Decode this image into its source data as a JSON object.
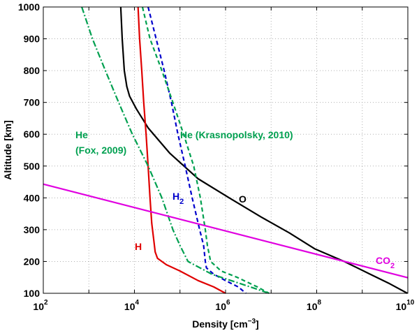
{
  "chart_data": {
    "type": "line",
    "title": "",
    "xlabel": "Density [cm",
    "xlabel_sup": "−3",
    "xlabel_end": "]",
    "ylabel": "Altitude [km]",
    "xscale": "log",
    "xlim": [
      100,
      10000000000
    ],
    "ylim": [
      100,
      1000
    ],
    "grid": true,
    "x_ticks": [
      {
        "value": 100,
        "base": "10",
        "exp": "2"
      },
      {
        "value": 10000,
        "base": "10",
        "exp": "4"
      },
      {
        "value": 1000000,
        "base": "10",
        "exp": "6"
      },
      {
        "value": 100000000,
        "base": "10",
        "exp": "8"
      },
      {
        "value": 10000000000,
        "base": "10",
        "exp": "10"
      }
    ],
    "y_ticks": [
      100,
      200,
      300,
      400,
      500,
      600,
      700,
      800,
      900,
      1000
    ],
    "series": [
      {
        "name": "O",
        "color": "#000000",
        "dash": "solid",
        "points": [
          [
            5000,
            1000
          ],
          [
            5400,
            900
          ],
          [
            6000,
            800
          ],
          [
            6800,
            750
          ],
          [
            7800,
            720
          ],
          [
            11000,
            680
          ],
          [
            20000,
            620
          ],
          [
            60000,
            540
          ],
          [
            250000,
            460
          ],
          [
            1200000,
            400
          ],
          [
            6000000,
            340
          ],
          [
            25000000,
            290
          ],
          [
            90000000,
            240
          ],
          [
            400000000,
            200
          ],
          [
            1500000000,
            160
          ],
          [
            4000000000,
            130
          ],
          [
            9800000000,
            100
          ]
        ]
      },
      {
        "name": "H",
        "color": "#e00000",
        "dash": "solid",
        "points": [
          [
            12000,
            1000
          ],
          [
            13000,
            900
          ],
          [
            14500,
            800
          ],
          [
            16000,
            700
          ],
          [
            18000,
            600
          ],
          [
            20000,
            500
          ],
          [
            22000,
            400
          ],
          [
            24000,
            320
          ],
          [
            27000,
            260
          ],
          [
            28500,
            230
          ],
          [
            32000,
            210
          ],
          [
            50000,
            190
          ],
          [
            100000,
            170
          ],
          [
            250000,
            140
          ],
          [
            550000,
            120
          ],
          [
            1000000,
            100
          ]
        ]
      },
      {
        "name": "H2",
        "color": "#0000cc",
        "dash": "6,4",
        "points": [
          [
            20000,
            1000
          ],
          [
            30000,
            900
          ],
          [
            45000,
            800
          ],
          [
            65000,
            700
          ],
          [
            90000,
            600
          ],
          [
            130000,
            500
          ],
          [
            185000,
            400
          ],
          [
            270000,
            300
          ],
          [
            330000,
            250
          ],
          [
            360000,
            200
          ],
          [
            380000,
            180
          ],
          [
            550000,
            160
          ],
          [
            1000000,
            140
          ],
          [
            1900000,
            120
          ],
          [
            2800000,
            100
          ]
        ]
      },
      {
        "name": "He (Krasnopolsky, 2010)",
        "color": "#00a050",
        "dash": "6,4",
        "points": [
          [
            15000,
            1000
          ],
          [
            22000,
            900
          ],
          [
            40000,
            800
          ],
          [
            70000,
            700
          ],
          [
            120000,
            600
          ],
          [
            200000,
            500
          ],
          [
            280000,
            400
          ],
          [
            360000,
            300
          ],
          [
            400000,
            250
          ],
          [
            470000,
            200
          ],
          [
            800000,
            170
          ],
          [
            1800000,
            150
          ],
          [
            5000000,
            120
          ],
          [
            9000000,
            100
          ]
        ]
      },
      {
        "name": "He (Fox, 2009)",
        "color": "#00a050",
        "dash": "9,3,2,3",
        "points": [
          [
            700,
            1000
          ],
          [
            1200,
            900
          ],
          [
            2300,
            800
          ],
          [
            4500,
            700
          ],
          [
            9000,
            600
          ],
          [
            20000,
            500
          ],
          [
            40000,
            400
          ],
          [
            70000,
            300
          ],
          [
            100000,
            250
          ],
          [
            150000,
            200
          ],
          [
            500000,
            160
          ],
          [
            3500000,
            120
          ],
          [
            9000000,
            100
          ]
        ]
      },
      {
        "name": "CO2",
        "color": "#e000e0",
        "dash": "solid",
        "points": [
          [
            100,
            443
          ],
          [
            10000000000,
            149
          ]
        ]
      }
    ],
    "annotations": [
      {
        "id": "he_fox_1",
        "text": "He",
        "color": "#00a050"
      },
      {
        "id": "he_fox_2",
        "text": "(Fox, 2009)",
        "color": "#00a050"
      },
      {
        "id": "he_kras",
        "text": "He (Krasnopolsky, 2010)",
        "color": "#00a050"
      },
      {
        "id": "h2_label",
        "text": "H",
        "sub": "2",
        "color": "#0000cc"
      },
      {
        "id": "o_label",
        "text": "O",
        "color": "#000000"
      },
      {
        "id": "h_label",
        "text": "H",
        "color": "#e00000"
      },
      {
        "id": "co2_label",
        "text": "CO",
        "sub": "2",
        "color": "#e000e0"
      }
    ]
  }
}
